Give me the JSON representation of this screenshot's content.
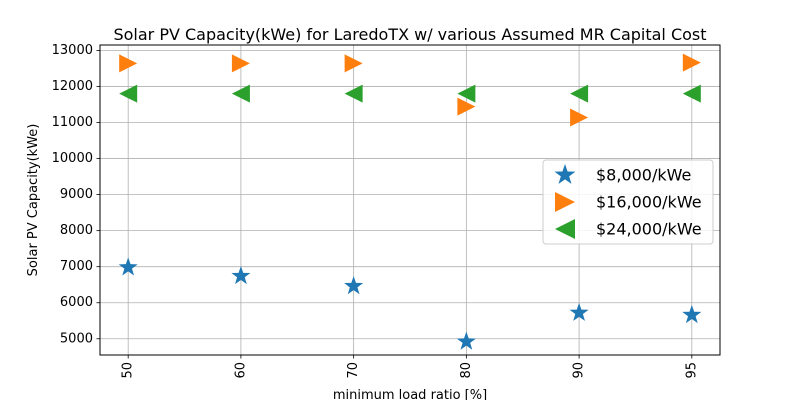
{
  "chart_data": {
    "type": "scatter",
    "title": "Solar PV Capacity(kWe) for LaredoTX w/ various Assumed MR Capital Cost",
    "xlabel": "minimum load ratio [%]",
    "ylabel": "Solar PV Capacity(kWe)",
    "categories": [
      "50",
      "60",
      "70",
      "80",
      "90",
      "95"
    ],
    "ylim": [
      4550,
      13150
    ],
    "yticks": [
      5000,
      6000,
      7000,
      8000,
      9000,
      10000,
      11000,
      12000,
      13000
    ],
    "grid": true,
    "legend_position": "center-right",
    "series": [
      {
        "name": "$8,000/kWe",
        "marker": "star",
        "color": "#1f77b4",
        "values": [
          6980,
          6740,
          6460,
          4920,
          5720,
          5660
        ]
      },
      {
        "name": "$16,000/kWe",
        "marker": "triangle-right",
        "color": "#ff7f0e",
        "values": [
          12640,
          12640,
          12640,
          11440,
          11140,
          12660
        ]
      },
      {
        "name": "$24,000/kWe",
        "marker": "triangle-left",
        "color": "#2ca02c",
        "values": [
          11800,
          11800,
          11800,
          11800,
          11800,
          11800
        ]
      }
    ]
  }
}
